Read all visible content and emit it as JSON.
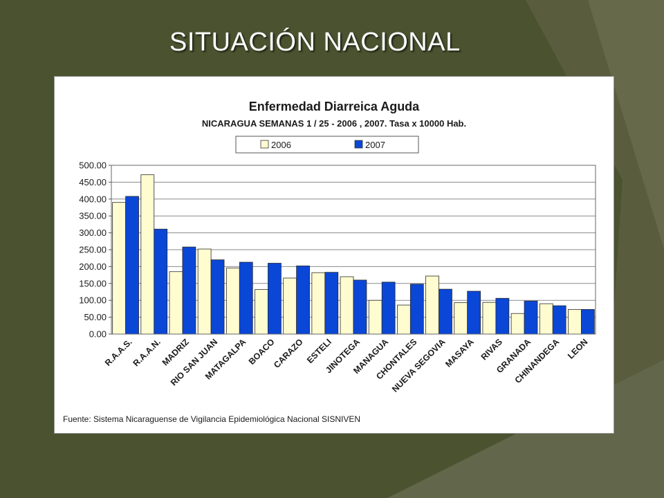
{
  "slide": {
    "title": "SITUACIÓN NACIONAL"
  },
  "colors": {
    "background": "#4a5230",
    "background_light": "#6b6f4b",
    "series_2006": "#fffcd0",
    "series_2007": "#0a47d6"
  },
  "chart_data": {
    "type": "bar",
    "title": "Enfermedad Diarreica Aguda",
    "subtitle": "NICARAGUA SEMANAS 1 / 25  -  2006 , 2007. Tasa x 10000 Hab.",
    "source": "Fuente: Sistema Nicaraguense de Vigilancia Epidemiológica Nacional SISNIVEN",
    "categories": [
      "R.A.A.S.",
      "R.A.A.N.",
      "MADRIZ",
      "RIO SAN JUAN",
      "MATAGALPA",
      "BOACO",
      "CARAZO",
      "ESTELI",
      "JINOTEGA",
      "MANAGUA",
      "CHONTALES",
      "NUEVA SEGOVIA",
      "MASAYA",
      "RIVAS",
      "GRANADA",
      "CHINANDEGA",
      "LEON"
    ],
    "series": [
      {
        "name": "2006",
        "color": "#fffcd0",
        "values": [
          390,
          472,
          185,
          252,
          196,
          132,
          166,
          182,
          170,
          100,
          86,
          172,
          93,
          94,
          61,
          90,
          73
        ]
      },
      {
        "name": "2007",
        "color": "#0a47d6",
        "values": [
          408,
          311,
          258,
          220,
          213,
          210,
          202,
          183,
          160,
          154,
          148,
          133,
          127,
          106,
          98,
          84,
          73
        ]
      }
    ],
    "ylim": [
      0,
      500
    ],
    "yticks": [
      "0.00",
      "50.00",
      "100.00",
      "150.00",
      "200.00",
      "250.00",
      "300.00",
      "350.00",
      "400.00",
      "450.00",
      "500.00"
    ],
    "ytick_values": [
      0,
      50,
      100,
      150,
      200,
      250,
      300,
      350,
      400,
      450,
      500
    ],
    "grid": true,
    "legend_position": "top-center"
  }
}
